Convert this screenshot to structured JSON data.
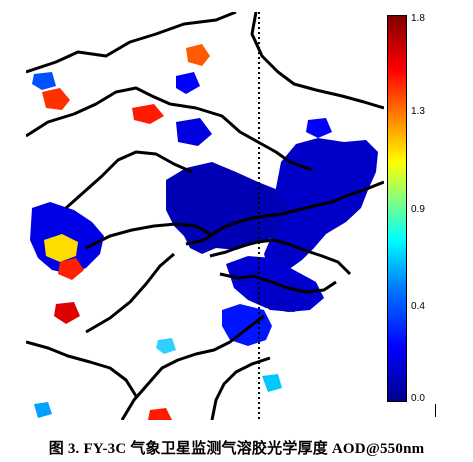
{
  "colorbar": {
    "ticks": [
      "1.8",
      "1.3",
      "0.9",
      "0.4",
      "0.0"
    ],
    "colors": [
      "#00008f",
      "#0000ff",
      "#0080ff",
      "#00ffff",
      "#80ff80",
      "#ffff00",
      "#ff8000",
      "#ff0000",
      "#800000"
    ]
  },
  "caption": "图 3. FY-3C 气象卫星监测气溶胶光学厚度 AOD@550nm"
}
